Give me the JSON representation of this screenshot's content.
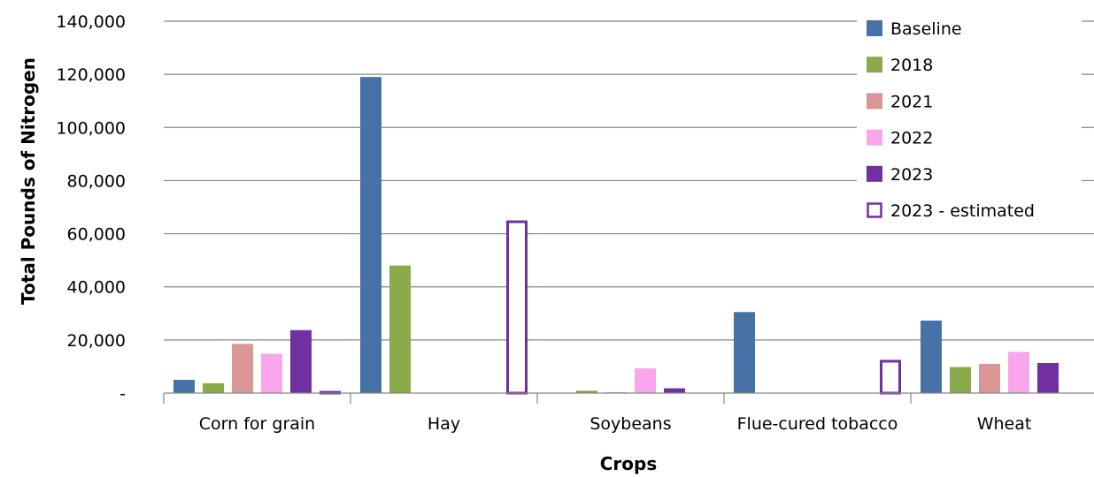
{
  "chart_data": {
    "type": "bar",
    "title": "",
    "xlabel": "Crops",
    "ylabel": "Total Pounds of Nitrogen",
    "ylim": [
      0,
      140000
    ],
    "yticks": [
      0,
      20000,
      40000,
      60000,
      80000,
      100000,
      120000,
      140000
    ],
    "ytick_labels": [
      "-",
      "20,000",
      "40,000",
      "60,000",
      "80,000",
      "100,000",
      "120,000",
      "140,000"
    ],
    "grid": true,
    "legend_position": "top-right",
    "categories": [
      "Corn for grain",
      "Hay",
      "Soybeans",
      "Flue-cured tobacco",
      "Wheat"
    ],
    "series": [
      {
        "name": "Baseline",
        "color": "#4672a8",
        "style": "filled",
        "values": [
          5000,
          119000,
          0,
          30500,
          27300
        ]
      },
      {
        "name": "2018",
        "color": "#8aaa4b",
        "style": "filled",
        "values": [
          3700,
          48000,
          900,
          0,
          9800
        ]
      },
      {
        "name": "2021",
        "color": "#d99694",
        "style": "filled",
        "values": [
          18500,
          0,
          300,
          0,
          11000
        ]
      },
      {
        "name": "2022",
        "color": "#f9a6ec",
        "style": "filled",
        "values": [
          14800,
          0,
          9300,
          0,
          15500
        ]
      },
      {
        "name": "2023",
        "color": "#7030a0",
        "style": "filled",
        "values": [
          23700,
          0,
          1800,
          0,
          11300
        ]
      },
      {
        "name": "2023 - estimated",
        "color": "#7030a0",
        "style": "outline",
        "values": [
          300,
          64500,
          0,
          12000,
          0
        ]
      }
    ]
  }
}
